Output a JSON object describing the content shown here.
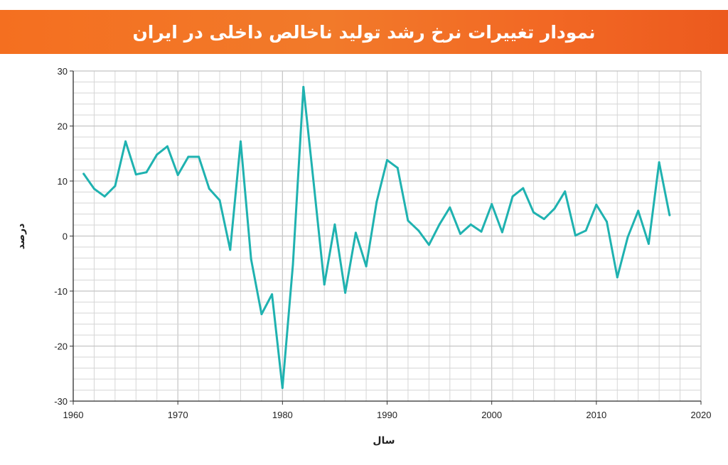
{
  "page": {
    "title": "نمودار تغییرات نرخ رشد تولید ناخالص داخلی در ایران"
  },
  "colors": {
    "banner": "#f2722a",
    "line": "#1fb2b0",
    "grid": "#d6d6d6"
  },
  "chart_data": {
    "type": "line",
    "xlabel": "سال",
    "ylabel": "درصد",
    "xlim": [
      1960,
      2020
    ],
    "ylim": [
      -30,
      30
    ],
    "x_ticks": [
      1960,
      1970,
      1980,
      1990,
      2000,
      2010,
      2020
    ],
    "y_ticks": [
      30,
      20,
      10,
      0,
      -10,
      -20,
      -30
    ],
    "grid": true,
    "x": [
      1961,
      1962,
      1963,
      1964,
      1965,
      1966,
      1967,
      1968,
      1969,
      1970,
      1971,
      1972,
      1973,
      1974,
      1975,
      1976,
      1977,
      1978,
      1979,
      1980,
      1981,
      1982,
      1983,
      1984,
      1985,
      1986,
      1987,
      1988,
      1989,
      1990,
      1991,
      1992,
      1993,
      1994,
      1995,
      1996,
      1997,
      1998,
      1999,
      2000,
      2001,
      2002,
      2003,
      2004,
      2005,
      2006,
      2007,
      2008,
      2009,
      2010,
      2011,
      2012,
      2013,
      2014,
      2015,
      2016,
      2017
    ],
    "y": [
      11.3,
      8.6,
      7.2,
      9.1,
      17.2,
      11.2,
      11.6,
      14.8,
      16.3,
      11.1,
      14.4,
      14.4,
      8.6,
      6.5,
      -2.5,
      17.2,
      -4.2,
      -14.2,
      -10.6,
      -27.6,
      -5.2,
      27.1,
      9.3,
      -8.8,
      2.1,
      -10.3,
      0.6,
      -5.5,
      6.2,
      13.8,
      12.4,
      2.8,
      1.0,
      -1.6,
      2.1,
      5.2,
      0.4,
      2.1,
      0.8,
      5.8,
      0.7,
      7.2,
      8.7,
      4.3,
      3.1,
      5.0,
      8.1,
      0.1,
      1.0,
      5.7,
      2.6,
      -7.5,
      -0.2,
      4.6,
      -1.4,
      13.4,
      3.8
    ]
  }
}
